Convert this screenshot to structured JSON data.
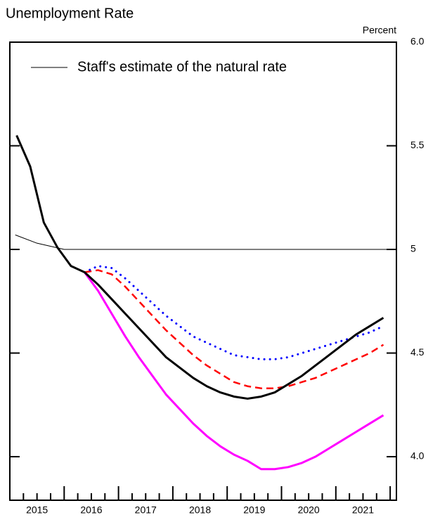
{
  "chart_data": {
    "type": "line",
    "title": "Unemployment Rate",
    "y_axis_label": "Percent",
    "xlim": [
      2015,
      2022.115
    ],
    "ylim": [
      3.79,
      6.0
    ],
    "yticks": [
      {
        "value": 4,
        "label": "4.0"
      },
      4.5,
      5,
      5.5,
      {
        "value": 6,
        "label": "6.0"
      }
    ],
    "xticks": [
      {
        "value": 2015.5,
        "label": "2015"
      },
      {
        "value": 2016.5,
        "label": "2016"
      },
      {
        "value": 2017.5,
        "label": "2017"
      },
      {
        "value": 2018.5,
        "label": "2018"
      },
      {
        "value": 2019.5,
        "label": "2019"
      },
      {
        "value": 2020.5,
        "label": "2020"
      },
      {
        "value": 2021.5,
        "label": "2021"
      }
    ],
    "xminorticks": [
      2015.25,
      2015.5,
      2015.75,
      2016,
      2016.25,
      2016.5,
      2016.75,
      2017,
      2017.25,
      2017.5,
      2017.75,
      2018,
      2018.25,
      2018.5,
      2018.75,
      2019,
      2019.25,
      2019.5,
      2019.75,
      2020,
      2020.25,
      2020.5,
      2020.75,
      2021,
      2021.25,
      2021.5,
      2021.75,
      2022
    ],
    "legend": "upper left",
    "series": [
      {
        "name": "Staff's estimate of the natural rate",
        "color": "#000000",
        "width": 1,
        "dash": "solid",
        "x": [
          2015.1,
          2015.5,
          2016.0,
          2022.115
        ],
        "values": [
          5.07,
          5.03,
          5.0,
          5.0
        ]
      },
      {
        "color": "#ff00ff",
        "width": 3,
        "dash": "solid",
        "x": [
          2016.375,
          2016.625,
          2016.875,
          2017.125,
          2017.375,
          2017.625,
          2017.875,
          2018.125,
          2018.375,
          2018.625,
          2018.875,
          2019.125,
          2019.375,
          2019.625,
          2019.875,
          2020.125,
          2020.375,
          2020.625,
          2020.875,
          2021.125,
          2021.375,
          2021.625,
          2021.875
        ],
        "values": [
          4.89,
          4.8,
          4.69,
          4.58,
          4.48,
          4.39,
          4.3,
          4.23,
          4.16,
          4.1,
          4.05,
          4.01,
          3.98,
          3.94,
          3.94,
          3.95,
          3.97,
          4.0,
          4.04,
          4.08,
          4.12,
          4.16,
          4.2
        ]
      },
      {
        "color": "#ff0000",
        "width": 2.5,
        "dash": "dashed",
        "x": [
          2016.375,
          2016.625,
          2016.875,
          2017.125,
          2017.375,
          2017.625,
          2017.875,
          2018.125,
          2018.375,
          2018.625,
          2018.875,
          2019.125,
          2019.375,
          2019.625,
          2019.875,
          2020.125,
          2020.375,
          2020.625,
          2020.875,
          2021.125,
          2021.375,
          2021.625,
          2021.875
        ],
        "values": [
          4.89,
          4.9,
          4.88,
          4.82,
          4.75,
          4.68,
          4.61,
          4.55,
          4.49,
          4.44,
          4.4,
          4.36,
          4.34,
          4.33,
          4.33,
          4.34,
          4.36,
          4.38,
          4.41,
          4.44,
          4.47,
          4.5,
          4.54
        ]
      },
      {
        "color": "#0000ff",
        "width": 3,
        "dash": "dotted",
        "x": [
          2016.375,
          2016.625,
          2016.875,
          2017.125,
          2017.375,
          2017.625,
          2017.875,
          2018.125,
          2018.375,
          2018.625,
          2018.875,
          2019.125,
          2019.375,
          2019.625,
          2019.875,
          2020.125,
          2020.375,
          2020.625,
          2020.875,
          2021.125,
          2021.375,
          2021.625,
          2021.875
        ],
        "values": [
          4.89,
          4.92,
          4.91,
          4.86,
          4.8,
          4.74,
          4.68,
          4.63,
          4.58,
          4.55,
          4.52,
          4.49,
          4.48,
          4.47,
          4.47,
          4.48,
          4.5,
          4.52,
          4.54,
          4.56,
          4.58,
          4.6,
          4.63
        ]
      },
      {
        "color": "#000000",
        "width": 3,
        "dash": "solid",
        "x": [
          2015.125,
          2015.375,
          2015.625,
          2015.875,
          2016.125,
          2016.375,
          2016.625,
          2016.875,
          2017.125,
          2017.375,
          2017.625,
          2017.875,
          2018.125,
          2018.375,
          2018.625,
          2018.875,
          2019.125,
          2019.375,
          2019.625,
          2019.875,
          2020.125,
          2020.375,
          2020.625,
          2020.875,
          2021.125,
          2021.375,
          2021.625,
          2021.875
        ],
        "values": [
          5.55,
          5.4,
          5.13,
          5.01,
          4.92,
          4.89,
          4.83,
          4.76,
          4.69,
          4.62,
          4.55,
          4.48,
          4.43,
          4.38,
          4.34,
          4.31,
          4.29,
          4.28,
          4.29,
          4.31,
          4.35,
          4.39,
          4.44,
          4.49,
          4.54,
          4.59,
          4.63,
          4.67
        ]
      }
    ]
  }
}
